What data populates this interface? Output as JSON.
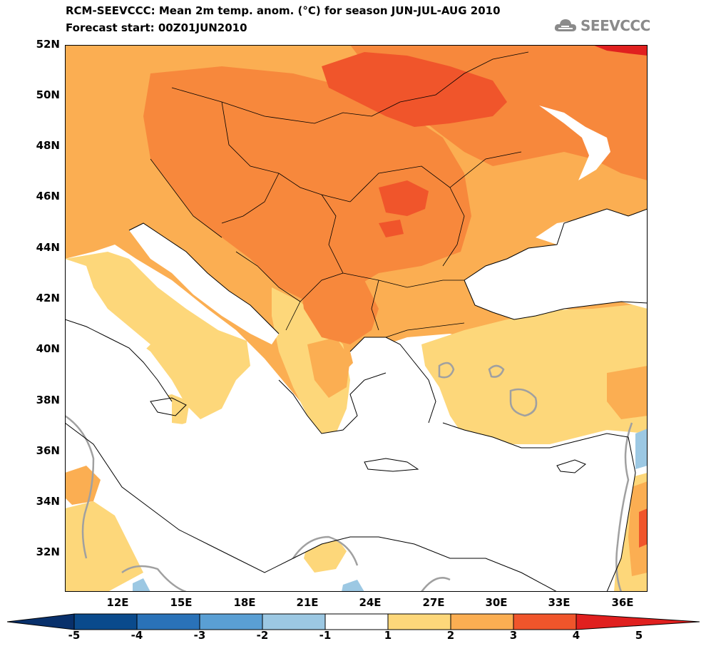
{
  "title": "RCM-SEEVCCC: Mean 2m temp. anom. (°C) for season JUN-JUL-AUG 2010",
  "subtitle": "Forecast start: 00Z01JUN2010",
  "logo_text": "SEEVCCC",
  "lat_labels": [
    "52N",
    "50N",
    "48N",
    "46N",
    "44N",
    "42N",
    "40N",
    "38N",
    "36N",
    "34N",
    "32N"
  ],
  "lon_labels": [
    "12E",
    "15E",
    "18E",
    "21E",
    "24E",
    "27E",
    "30E",
    "33E",
    "36E"
  ],
  "colorbar": {
    "labels": [
      "-5",
      "-4",
      "-3",
      "-2",
      "-1",
      "1",
      "2",
      "3",
      "4",
      "5"
    ],
    "colors": [
      "#0a4a8c",
      "#2a72b8",
      "#5a9fd4",
      "#9cc8e3",
      "#ffffff",
      "#fdd77a",
      "#fbae52",
      "#f7883c",
      "#f0552b",
      "#e0201f"
    ],
    "low_color": "#08306b",
    "high_color": "#c0101b"
  },
  "colors": {
    "anom_1_2": "#fdd77a",
    "anom_2_3": "#fbae52",
    "anom_3_4": "#f7883c",
    "anom_4_5": "#f0552b",
    "anom_gt5": "#e0201f",
    "anom_neg": "#9cc8e3",
    "contour": "#a0a0a0"
  }
}
